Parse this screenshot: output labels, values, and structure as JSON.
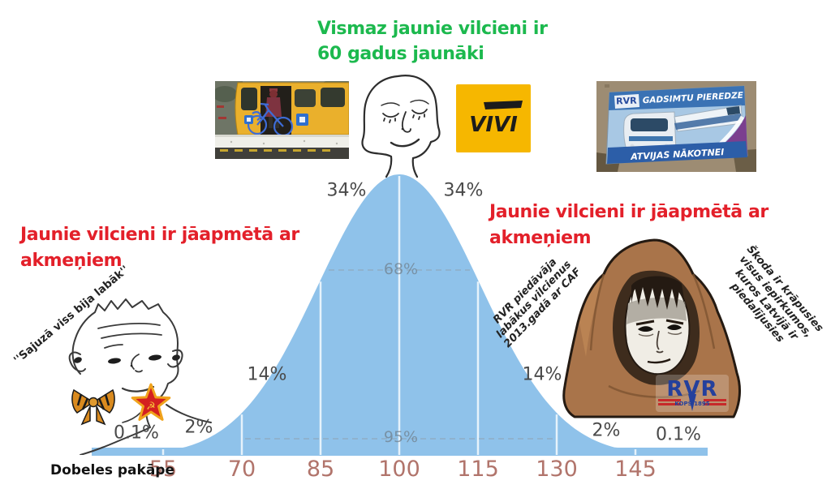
{
  "title": {
    "line1": "Vismaz jaunie vilcieni ir",
    "line2": "60 gadus jaunāki"
  },
  "captions": {
    "left": {
      "line1": "Jaunie vilcieni ir jāapmētā ar",
      "line2": "akmeņiem"
    },
    "right": {
      "line1": "Jaunie vilcieni ir jāapmētā ar",
      "line2": "akmeņiem"
    }
  },
  "quotes": {
    "left_wojak": "''Sajuzā viss bija labāk''",
    "rvr_offer": [
      "RVR piedāvāja",
      "labākus vilcienus",
      "2013.gadā ar CAF"
    ],
    "skoda": [
      "Škoda ir krāpusies",
      "visus iepirkumos,",
      "kuros Latvijā ir",
      "piedalījusies"
    ]
  },
  "logos": {
    "vivi": "VIVI",
    "rvr_patch": {
      "text": "RVR",
      "subtext": "KOPŠ 1895"
    },
    "billboard": {
      "brand": "RVR",
      "top": "GADSIMTU PIEREDZE",
      "bottom": "ATVIJAS NĀKOTNEI"
    }
  },
  "chart_data": {
    "type": "area",
    "subtype": "normal-distribution-bell-curve",
    "title": "",
    "xlabel": "Dobeles pakāpe",
    "ylabel": "",
    "mean": 100,
    "sd": 15,
    "x_ticks": [
      55,
      70,
      85,
      100,
      115,
      130,
      145
    ],
    "segment_labels": [
      "0.1%",
      "2%",
      "14%",
      "34%",
      "34%",
      "14%",
      "2%",
      "0.1%"
    ],
    "segment_values_pct": [
      0.1,
      2,
      14,
      34,
      34,
      14,
      2,
      0.1
    ],
    "interval_labels": [
      {
        "label": "68%",
        "span_sd": 1
      },
      {
        "label": "95%",
        "span_sd": 2
      }
    ],
    "grid": "white vertical lines at each tick; dashed gray interval lines",
    "legend": "none",
    "curve_color": "#8fc2ea"
  },
  "colors": {
    "title_green": "#1cb94e",
    "caption_red": "#e3202a",
    "curve_blue": "#8fc2ea",
    "axis_tick_brown": "#b1746b",
    "percent_gray": "#4a4a4a",
    "vivi_yellow": "#f6b700",
    "rvr_blue": "#24409c"
  }
}
